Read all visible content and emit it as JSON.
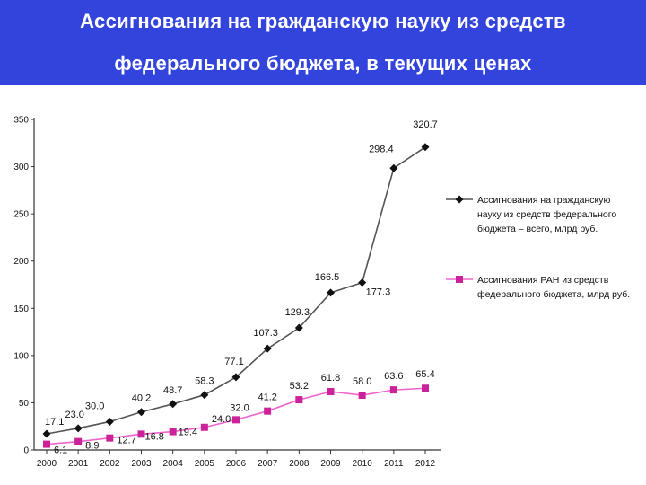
{
  "header": {
    "title_line1": "Ассигнования на гражданскую науку из средств",
    "title_line2": "федерального бюджета, в текущих ценах"
  },
  "colors": {
    "header_bg": "#3344dd",
    "series1": "#555555",
    "series1_marker": "#111111",
    "series2": "#ee66cc",
    "series2_marker": "#cc2299"
  },
  "chart_data": {
    "type": "line",
    "categories": [
      "2000",
      "2001",
      "2002",
      "2003",
      "2004",
      "2005",
      "2006",
      "2007",
      "2008",
      "2009",
      "2010",
      "2011",
      "2012"
    ],
    "ylim": [
      0,
      350
    ],
    "yticks": [
      0,
      50,
      100,
      150,
      200,
      250,
      300,
      350
    ],
    "grid": false,
    "legend_position": "right",
    "series": [
      {
        "name_lines": [
          "Ассигнования на гражданскую",
          "науку из средств федерального",
          "бюджета – всего, млрд руб."
        ],
        "values": [
          17.1,
          23.0,
          30.0,
          40.2,
          48.7,
          58.3,
          77.1,
          107.3,
          129.3,
          166.5,
          177.3,
          298.4,
          320.7
        ],
        "labels": [
          "17.1",
          "23.0",
          "30.0",
          "40.2",
          "48.7",
          "58.3",
          "77.1",
          "107.3",
          "129.3",
          "166.5",
          "177.3",
          "298.4",
          "320.7"
        ]
      },
      {
        "name_lines": [
          "Ассигнования РАН из средств",
          "федерального бюджета, млрд руб."
        ],
        "values": [
          6.1,
          8.9,
          12.7,
          16.8,
          19.4,
          24.0,
          32.0,
          41.2,
          53.2,
          61.8,
          58.0,
          63.6,
          65.4
        ],
        "labels": [
          "6.1",
          "8.9",
          "12.7",
          "16.8",
          "19.4",
          "24.0",
          "32.0",
          "41.2",
          "53.2",
          "61.8",
          "58.0",
          "63.6",
          "65.4"
        ]
      }
    ]
  }
}
